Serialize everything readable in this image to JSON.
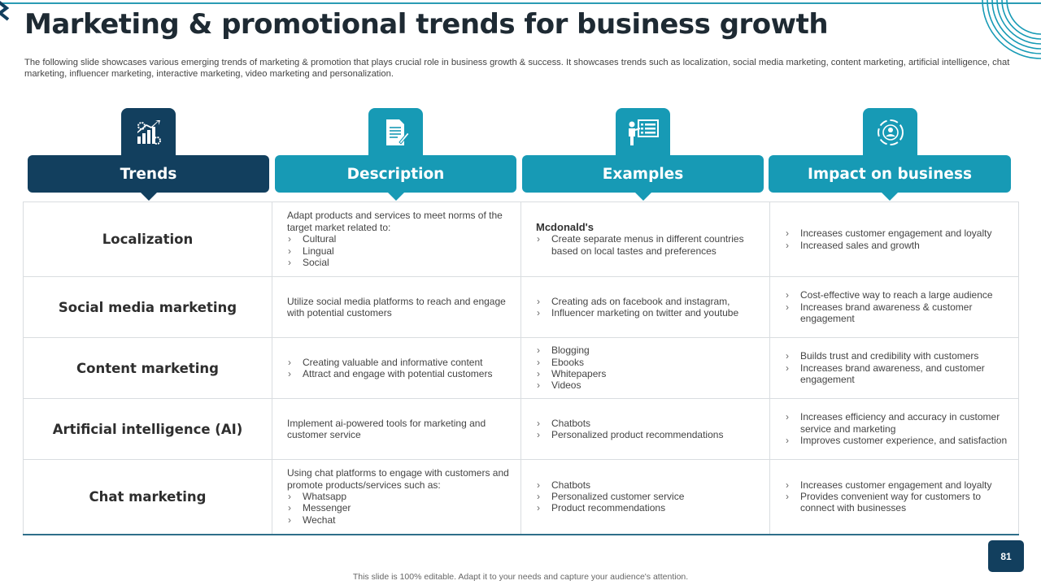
{
  "slide": {
    "title": "Marketing & promotional trends for business growth",
    "subtitle": "The following slide showcases various emerging trends of marketing & promotion that plays crucial role in business growth & success. It showcases trends such as localization, social media marketing, content marketing, artificial intelligence, chat marketing, influencer marketing, interactive marketing, video marketing and personalization.",
    "footer": "This slide is 100% editable. Adapt it to your needs and capture your audience's attention.",
    "page_number": "81"
  },
  "colors": {
    "dark": "#123f5e",
    "teal": "#179ab5",
    "accent_line": "#2a9bb4"
  },
  "headers": [
    {
      "label": "Trends",
      "icon": "growth-chart-gears-icon"
    },
    {
      "label": "Description",
      "icon": "document-edit-icon"
    },
    {
      "label": "Examples",
      "icon": "presenter-board-icon"
    },
    {
      "label": "Impact on business",
      "icon": "target-cycle-icon"
    }
  ],
  "rows": [
    {
      "trend": "Localization",
      "description": {
        "text": "Adapt products and services to meet norms of the target market related to:",
        "bullets": [
          "Cultural",
          "Lingual",
          "Social"
        ]
      },
      "examples": {
        "brand": "Mcdonald's",
        "bullets": [
          "Create separate menus in different countries based on local tastes and preferences"
        ]
      },
      "impact": [
        "Increases customer engagement and loyalty",
        "Increased sales and growth"
      ]
    },
    {
      "trend": "Social media marketing",
      "description": {
        "text": "Utilize social media platforms to reach and engage with potential customers"
      },
      "examples": {
        "bullets": [
          "Creating ads on facebook and instagram,",
          "Influencer marketing on twitter and youtube"
        ]
      },
      "impact": [
        "Cost-effective way to reach a large audience",
        "Increases brand awareness & customer engagement"
      ]
    },
    {
      "trend": "Content marketing",
      "description": {
        "bullets": [
          "Creating valuable and informative content",
          "Attract  and engage with potential customers"
        ]
      },
      "examples": {
        "bullets": [
          "Blogging",
          "Ebooks",
          "Whitepapers",
          "Videos"
        ]
      },
      "impact": [
        "Builds trust and credibility with customers",
        "Increases brand awareness, and customer engagement"
      ]
    },
    {
      "trend": "Artificial intelligence (AI)",
      "description": {
        "text": "Implement ai-powered tools for marketing and customer service"
      },
      "examples": {
        "bullets": [
          "Chatbots",
          "Personalized product recommendations"
        ]
      },
      "impact": [
        "Increases efficiency and accuracy in customer service and marketing",
        "Improves customer experience, and satisfaction"
      ]
    },
    {
      "trend": "Chat marketing",
      "description": {
        "text": "Using chat platforms to engage with customers and promote products/services such as:",
        "bullets": [
          "Whatsapp",
          "Messenger",
          "Wechat"
        ]
      },
      "examples": {
        "bullets": [
          "Chatbots",
          "Personalized customer service",
          "Product recommendations"
        ]
      },
      "impact": [
        "Increases customer engagement and loyalty",
        "Provides convenient way for customers to connect with businesses"
      ]
    }
  ]
}
